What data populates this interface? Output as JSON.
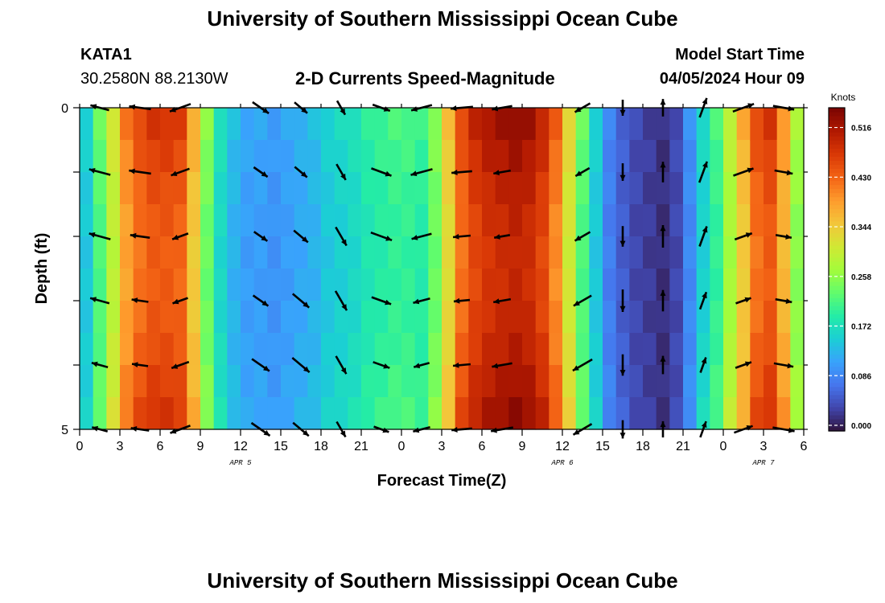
{
  "page": {
    "title": "University of Southern Mississippi Ocean Cube",
    "footer_title": "University of Southern Mississippi Ocean Cube",
    "station_id": "KATA1",
    "station_coords": "30.2580N  88.2130W",
    "plot_title": "2-D Currents Speed-Magnitude",
    "model_start_label": "Model Start Time",
    "model_start_value": "04/05/2024 Hour 09"
  },
  "colors": {
    "colormap": [
      "#30123b",
      "#4145ab",
      "#4675ed",
      "#39a2fc",
      "#1bcfd4",
      "#24eca6",
      "#61fc6c",
      "#a4fc3b",
      "#d1e834",
      "#f3c63a",
      "#fe9b2d",
      "#f36315",
      "#d93806",
      "#b11901",
      "#7a0402"
    ],
    "arrow": "#000000"
  },
  "chart_data": {
    "type": "heatmap",
    "title": "2-D Currents Speed-Magnitude",
    "xlabel": "Forecast Time(Z)",
    "ylabel": "Depth (ft)",
    "x_ticks": [
      "0",
      "3",
      "6",
      "9",
      "12",
      "15",
      "18",
      "21",
      "0",
      "3",
      "6",
      "9",
      "12",
      "15",
      "18",
      "21",
      "0",
      "3",
      "6"
    ],
    "date_labels": [
      {
        "label": "APR 5",
        "hour": 12
      },
      {
        "label": "APR 6",
        "hour": 36
      },
      {
        "label": "APR 7",
        "hour": 51
      }
    ],
    "x_range_hours": [
      0,
      54
    ],
    "y_ticks": [
      "0",
      "5"
    ],
    "y_range_ft": [
      0,
      5
    ],
    "colorbar": {
      "label": "Knots",
      "ticks": [
        "0.000",
        "0.086",
        "0.172",
        "0.258",
        "0.344",
        "0.430",
        "0.516"
      ],
      "min": 0.0,
      "max": 0.56
    },
    "hours": [
      0,
      1,
      2,
      3,
      4,
      5,
      6,
      7,
      8,
      9,
      10,
      11,
      12,
      13,
      14,
      15,
      16,
      17,
      18,
      19,
      20,
      21,
      22,
      23,
      24,
      25,
      26,
      27,
      28,
      29,
      30,
      31,
      32,
      33,
      34,
      35,
      36,
      37,
      38,
      39,
      40,
      41,
      42,
      43,
      44,
      45,
      46,
      47,
      48,
      49,
      50,
      51,
      52,
      53,
      54
    ],
    "speed_profile_knots": [
      0.16,
      0.24,
      0.32,
      0.42,
      0.46,
      0.48,
      0.48,
      0.47,
      0.38,
      0.26,
      0.18,
      0.14,
      0.12,
      0.12,
      0.11,
      0.12,
      0.13,
      0.14,
      0.16,
      0.17,
      0.18,
      0.2,
      0.21,
      0.22,
      0.22,
      0.21,
      0.26,
      0.36,
      0.46,
      0.5,
      0.52,
      0.53,
      0.54,
      0.53,
      0.5,
      0.44,
      0.34,
      0.24,
      0.16,
      0.09,
      0.06,
      0.04,
      0.03,
      0.02,
      0.04,
      0.1,
      0.17,
      0.22,
      0.3,
      0.38,
      0.46,
      0.48,
      0.4,
      0.28,
      0.2
    ],
    "vector_hours": [
      1.5,
      4.5,
      7.5,
      13.5,
      16.5,
      19.5,
      22.5,
      25.5,
      28.5,
      31.5,
      37.5,
      40.5,
      43.5,
      46.5,
      49.5,
      52.5
    ],
    "vector_depths_ft": [
      0,
      1,
      2,
      3,
      4,
      5
    ],
    "vector_directions_deg": [
      165,
      172,
      200,
      325,
      320,
      300,
      340,
      195,
      185,
      190,
      210,
      270,
      90,
      70,
      20,
      350
    ]
  }
}
